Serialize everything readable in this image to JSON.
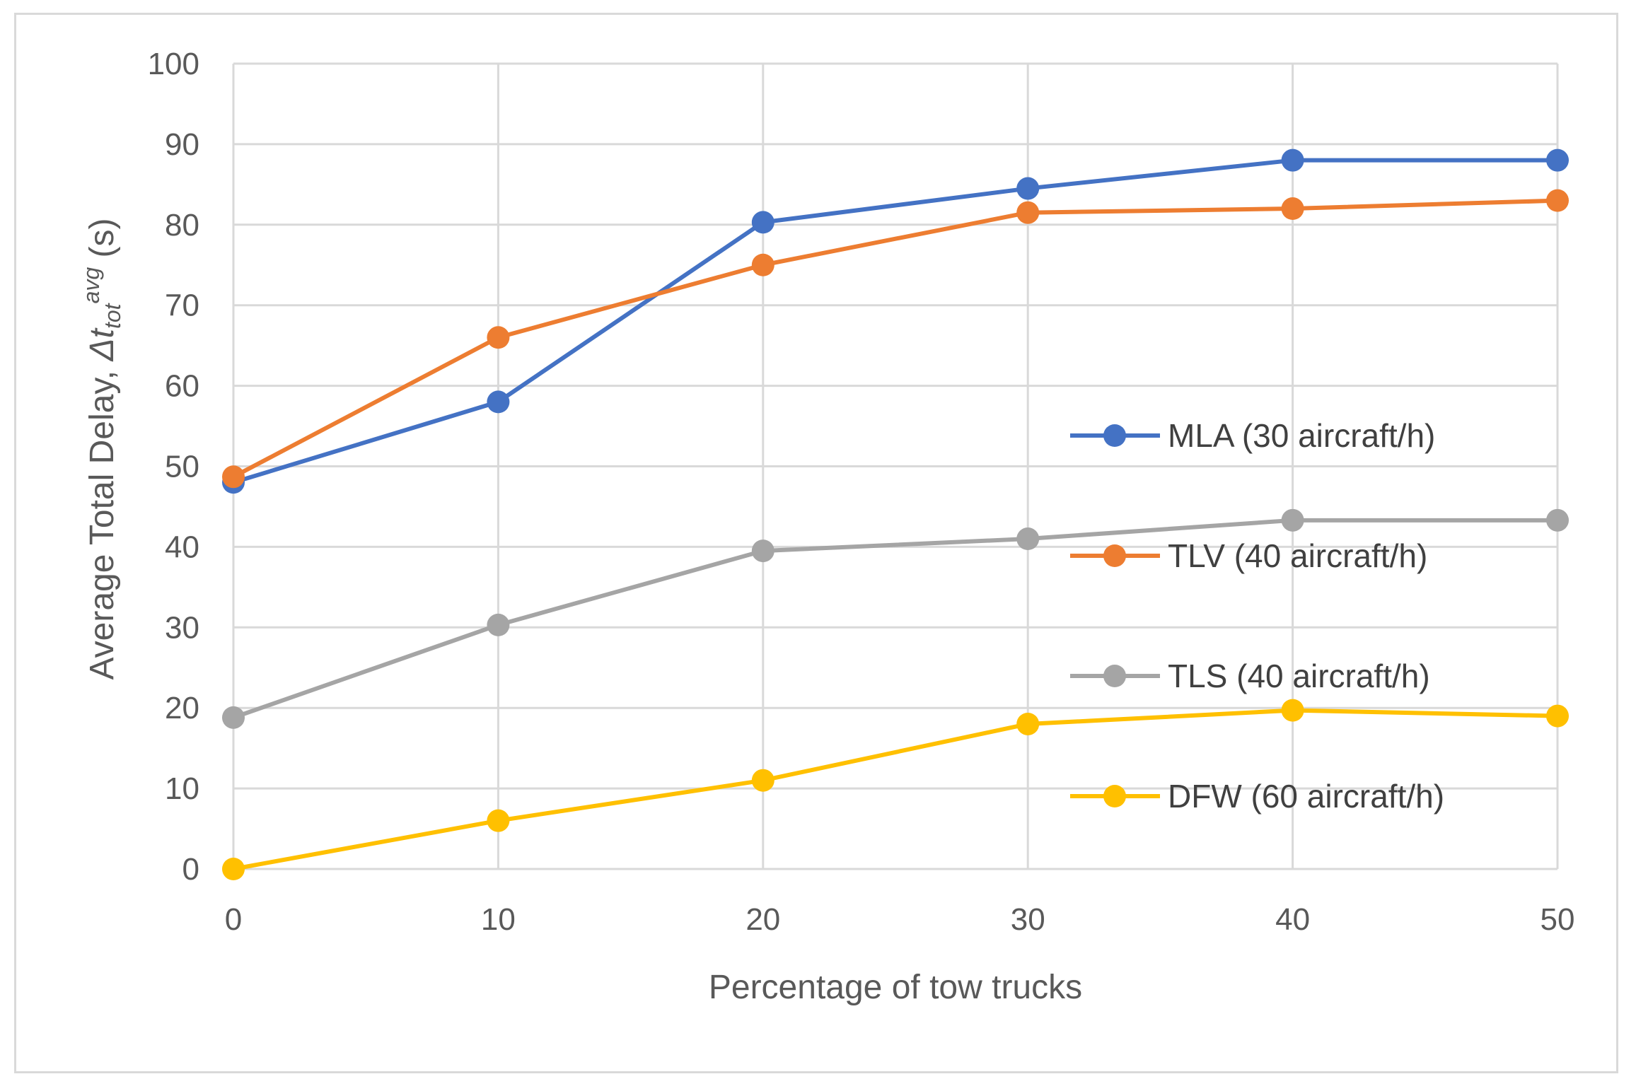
{
  "chart_data": {
    "type": "line",
    "title": "",
    "xlabel": "Percentage of tow trucks",
    "ylabel": {
      "prefix": "Average Total Delay, ",
      "symbol": "Δt",
      "subscript": "tot",
      "superscript": "avg",
      "unit": " (s)"
    },
    "x": [
      0,
      10,
      20,
      30,
      40,
      50
    ],
    "xlim": [
      0,
      50
    ],
    "ylim": [
      0,
      100
    ],
    "x_ticks": [
      "0",
      "10",
      "20",
      "30",
      "40",
      "50"
    ],
    "y_ticks": [
      "0",
      "10",
      "20",
      "30",
      "40",
      "50",
      "60",
      "70",
      "80",
      "90",
      "100"
    ],
    "grid": true,
    "legend_position": "right",
    "series": [
      {
        "name": "MLA (30 aircraft/h)",
        "color": "#4472c4",
        "values": [
          48,
          58,
          80.3,
          84.5,
          88,
          88
        ]
      },
      {
        "name": "TLV (40 aircraft/h)",
        "color": "#ed7d31",
        "values": [
          48.7,
          66,
          75,
          81.5,
          82,
          83
        ]
      },
      {
        "name": "TLS (40 aircraft/h)",
        "color": "#a5a5a5",
        "values": [
          18.8,
          30.3,
          39.5,
          41,
          43.3,
          43.3
        ]
      },
      {
        "name": "DFW (60 aircraft/h)",
        "color": "#ffc000",
        "values": [
          0,
          6,
          11,
          18,
          19.7,
          19
        ]
      }
    ]
  }
}
